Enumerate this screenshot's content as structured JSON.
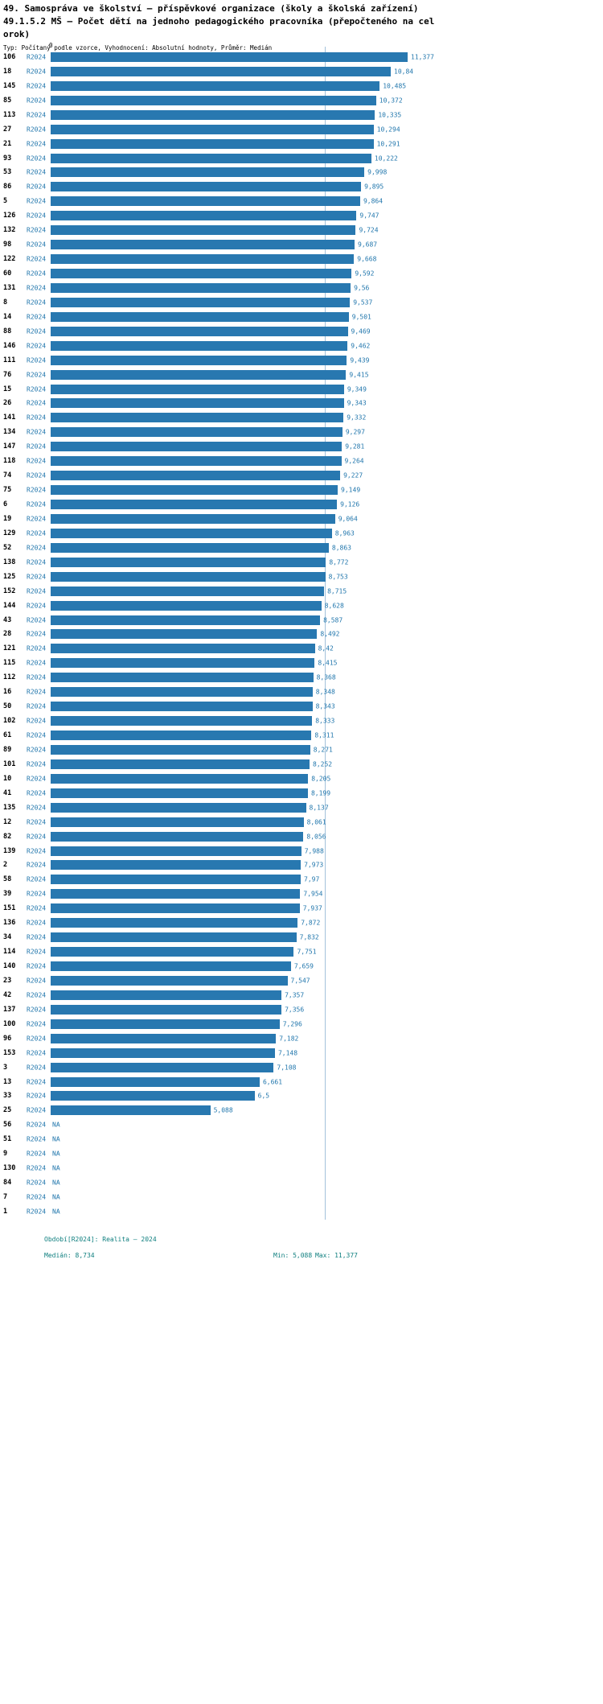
{
  "header": {
    "title_line1": "49. Samospráva ve školství – příspěvkové organizace (školy a školská zařízení)",
    "title_line2": "49.1.5.2 MŠ – Počet dětí na jednoho pedagogického pracovníka (přepočteného na cel",
    "title_line3": "orok)",
    "meta": "Typ: Počítaný podle vzorce, Vyhodnocení: Absolutní hodnoty, Průměr: Medián"
  },
  "chart": {
    "zero_label": "0",
    "bar_color": "#2878B0",
    "median_line_color": "#A3C2DB",
    "label_color": "#2277AD"
  },
  "chart_data": {
    "type": "bar",
    "orientation": "horizontal",
    "title": "49.1.5.2 MŠ – Počet dětí na jednoho pedagogického pracovníka (přepočteného na celorok)",
    "series_label": "R2024",
    "axis": {
      "origin_label": "0",
      "min": 0,
      "max": 11.377,
      "gridlines": false
    },
    "stats": {
      "median": 8.734,
      "min": 5.088,
      "max": 11.377
    },
    "rows": [
      {
        "id": "106",
        "value_label": "11,377",
        "value": 11.377
      },
      {
        "id": "18",
        "value_label": "10,84",
        "value": 10.84
      },
      {
        "id": "145",
        "value_label": "10,485",
        "value": 10.485
      },
      {
        "id": "85",
        "value_label": "10,372",
        "value": 10.372
      },
      {
        "id": "113",
        "value_label": "10,335",
        "value": 10.335
      },
      {
        "id": "27",
        "value_label": "10,294",
        "value": 10.294
      },
      {
        "id": "21",
        "value_label": "10,291",
        "value": 10.291
      },
      {
        "id": "93",
        "value_label": "10,222",
        "value": 10.222
      },
      {
        "id": "53",
        "value_label": "9,998",
        "value": 9.998
      },
      {
        "id": "86",
        "value_label": "9,895",
        "value": 9.895
      },
      {
        "id": "5",
        "value_label": "9,864",
        "value": 9.864
      },
      {
        "id": "126",
        "value_label": "9,747",
        "value": 9.747
      },
      {
        "id": "132",
        "value_label": "9,724",
        "value": 9.724
      },
      {
        "id": "98",
        "value_label": "9,687",
        "value": 9.687
      },
      {
        "id": "122",
        "value_label": "9,668",
        "value": 9.668
      },
      {
        "id": "60",
        "value_label": "9,592",
        "value": 9.592
      },
      {
        "id": "131",
        "value_label": "9,56",
        "value": 9.56
      },
      {
        "id": "8",
        "value_label": "9,537",
        "value": 9.537
      },
      {
        "id": "14",
        "value_label": "9,501",
        "value": 9.501
      },
      {
        "id": "88",
        "value_label": "9,469",
        "value": 9.469
      },
      {
        "id": "146",
        "value_label": "9,462",
        "value": 9.462
      },
      {
        "id": "111",
        "value_label": "9,439",
        "value": 9.439
      },
      {
        "id": "76",
        "value_label": "9,415",
        "value": 9.415
      },
      {
        "id": "15",
        "value_label": "9,349",
        "value": 9.349
      },
      {
        "id": "26",
        "value_label": "9,343",
        "value": 9.343
      },
      {
        "id": "141",
        "value_label": "9,332",
        "value": 9.332
      },
      {
        "id": "134",
        "value_label": "9,297",
        "value": 9.297
      },
      {
        "id": "147",
        "value_label": "9,281",
        "value": 9.281
      },
      {
        "id": "118",
        "value_label": "9,264",
        "value": 9.264
      },
      {
        "id": "74",
        "value_label": "9,227",
        "value": 9.227
      },
      {
        "id": "75",
        "value_label": "9,149",
        "value": 9.149
      },
      {
        "id": "6",
        "value_label": "9,126",
        "value": 9.126
      },
      {
        "id": "19",
        "value_label": "9,064",
        "value": 9.064
      },
      {
        "id": "129",
        "value_label": "8,963",
        "value": 8.963
      },
      {
        "id": "52",
        "value_label": "8,863",
        "value": 8.863
      },
      {
        "id": "138",
        "value_label": "8,772",
        "value": 8.772
      },
      {
        "id": "125",
        "value_label": "8,753",
        "value": 8.753
      },
      {
        "id": "152",
        "value_label": "8,715",
        "value": 8.715
      },
      {
        "id": "144",
        "value_label": "8,628",
        "value": 8.628
      },
      {
        "id": "43",
        "value_label": "8,587",
        "value": 8.587
      },
      {
        "id": "28",
        "value_label": "8,492",
        "value": 8.492
      },
      {
        "id": "121",
        "value_label": "8,42",
        "value": 8.42
      },
      {
        "id": "115",
        "value_label": "8,415",
        "value": 8.415
      },
      {
        "id": "112",
        "value_label": "8,368",
        "value": 8.368
      },
      {
        "id": "16",
        "value_label": "8,348",
        "value": 8.348
      },
      {
        "id": "50",
        "value_label": "8,343",
        "value": 8.343
      },
      {
        "id": "102",
        "value_label": "8,333",
        "value": 8.333
      },
      {
        "id": "61",
        "value_label": "8,311",
        "value": 8.311
      },
      {
        "id": "89",
        "value_label": "8,271",
        "value": 8.271
      },
      {
        "id": "101",
        "value_label": "8,252",
        "value": 8.252
      },
      {
        "id": "10",
        "value_label": "8,205",
        "value": 8.205
      },
      {
        "id": "41",
        "value_label": "8,199",
        "value": 8.199
      },
      {
        "id": "135",
        "value_label": "8,137",
        "value": 8.137
      },
      {
        "id": "12",
        "value_label": "8,061",
        "value": 8.061
      },
      {
        "id": "82",
        "value_label": "8,056",
        "value": 8.056
      },
      {
        "id": "139",
        "value_label": "7,988",
        "value": 7.988
      },
      {
        "id": "2",
        "value_label": "7,973",
        "value": 7.973
      },
      {
        "id": "58",
        "value_label": "7,97",
        "value": 7.97
      },
      {
        "id": "39",
        "value_label": "7,954",
        "value": 7.954
      },
      {
        "id": "151",
        "value_label": "7,937",
        "value": 7.937
      },
      {
        "id": "136",
        "value_label": "7,872",
        "value": 7.872
      },
      {
        "id": "34",
        "value_label": "7,832",
        "value": 7.832
      },
      {
        "id": "114",
        "value_label": "7,751",
        "value": 7.751
      },
      {
        "id": "140",
        "value_label": "7,659",
        "value": 7.659
      },
      {
        "id": "23",
        "value_label": "7,547",
        "value": 7.547
      },
      {
        "id": "42",
        "value_label": "7,357",
        "value": 7.357
      },
      {
        "id": "137",
        "value_label": "7,356",
        "value": 7.356
      },
      {
        "id": "100",
        "value_label": "7,296",
        "value": 7.296
      },
      {
        "id": "96",
        "value_label": "7,182",
        "value": 7.182
      },
      {
        "id": "153",
        "value_label": "7,148",
        "value": 7.148
      },
      {
        "id": "3",
        "value_label": "7,108",
        "value": 7.108
      },
      {
        "id": "13",
        "value_label": "6,661",
        "value": 6.661
      },
      {
        "id": "33",
        "value_label": "6,5",
        "value": 6.5
      },
      {
        "id": "25",
        "value_label": "5,088",
        "value": 5.088
      },
      {
        "id": "56",
        "value_label": "NA",
        "value": null
      },
      {
        "id": "51",
        "value_label": "NA",
        "value": null
      },
      {
        "id": "9",
        "value_label": "NA",
        "value": null
      },
      {
        "id": "130",
        "value_label": "NA",
        "value": null
      },
      {
        "id": "84",
        "value_label": "NA",
        "value": null
      },
      {
        "id": "7",
        "value_label": "NA",
        "value": null
      },
      {
        "id": "1",
        "value_label": "NA",
        "value": null
      }
    ]
  },
  "footer": {
    "period": "Období[R2024]: Realita – 2024",
    "median": "Medián: 8,734",
    "min": "Min: 5,088",
    "max": "Max: 11,377",
    "text_color": "#0F7F7F"
  }
}
